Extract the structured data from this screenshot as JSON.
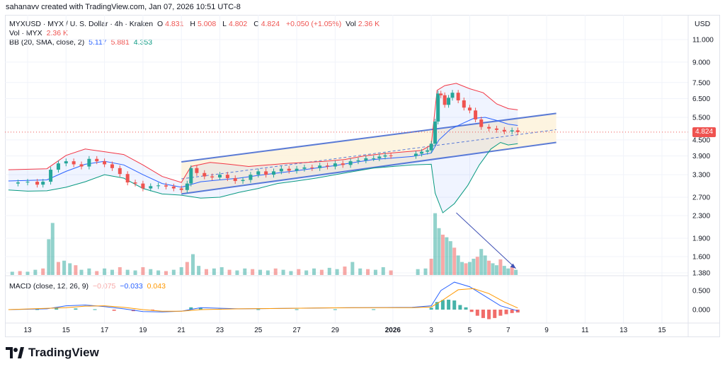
{
  "header": {
    "credit": "sahanavv created with TradingView.com, Jan 07, 2026 10:51 UTC-8"
  },
  "legend": {
    "symbol": "MYXUSD · MYX / U. S. Dollar · 4h · Kraken",
    "open_label": "O",
    "open": "4.831",
    "high_label": "H",
    "high": "5.008",
    "low_label": "L",
    "low": "4.802",
    "close_label": "C",
    "close": "4.824",
    "change": "+0.050 (+1.05%)",
    "vol_label": "Vol",
    "vol": "2.36 K",
    "vol_line_label": "Vol · MYX",
    "vol_line_value": "2.36 K",
    "bb_label": "BB (20, SMA, close, 2)",
    "bb_basis": "5.117",
    "bb_upper": "5.881",
    "bb_lower": "4.353",
    "macd_label": "MACD (close, 12, 26, 9)",
    "macd_hist": "−0.075",
    "macd_line": "−0.033",
    "macd_signal": "0.043"
  },
  "price_axis": {
    "currency": "USD",
    "last_price": "4.824"
  },
  "brand": {
    "name": "TradingView"
  },
  "colors": {
    "up": "#26a69a",
    "down": "#ef5350",
    "bb_basis": "#2962ff",
    "bb_upper": "#f23645",
    "bb_lower": "#089981",
    "channel": "#5b7bd5",
    "channel_fill": "#fdf3dd",
    "macd": "#2962ff",
    "signal": "#ff9800"
  },
  "chart_data": {
    "type": "candlestick",
    "scale": "log",
    "x_ticks": [
      "13",
      "15",
      "17",
      "19",
      "21",
      "23",
      "25",
      "27",
      "29",
      "2026",
      "3",
      "5",
      "7",
      "9",
      "11",
      "13",
      "15"
    ],
    "price_ticks": [
      11.0,
      9.0,
      7.5,
      6.5,
      5.5,
      4.5,
      3.9,
      3.3,
      2.7,
      2.3,
      1.9,
      1.6,
      1.38
    ],
    "price_tick_labels": [
      "11.000",
      "9.000",
      "7.500",
      "6.500",
      "5.500",
      "4.500",
      "3.900",
      "3.300",
      "2.700",
      "2.300",
      "1.900",
      "1.600",
      "1.380"
    ],
    "macd_ticks": [
      0.5,
      0.0
    ],
    "macd_tick_labels": [
      "0.500",
      "0.000"
    ],
    "close_path": [
      [
        12.0,
        3.05
      ],
      [
        12.5,
        3.08
      ],
      [
        13.0,
        3.1
      ],
      [
        13.5,
        3.02
      ],
      [
        13.8,
        3.1
      ],
      [
        14.2,
        3.45
      ],
      [
        14.6,
        3.65
      ],
      [
        15.0,
        3.72
      ],
      [
        15.4,
        3.62
      ],
      [
        15.8,
        3.55
      ],
      [
        16.2,
        3.8
      ],
      [
        16.6,
        3.72
      ],
      [
        17.0,
        3.62
      ],
      [
        17.4,
        3.5
      ],
      [
        17.8,
        3.32
      ],
      [
        18.2,
        3.08
      ],
      [
        18.6,
        3.05
      ],
      [
        19.0,
        2.92
      ],
      [
        19.4,
        2.98
      ],
      [
        19.8,
        3.0
      ],
      [
        20.2,
        2.97
      ],
      [
        20.6,
        2.92
      ],
      [
        21.0,
        2.88
      ],
      [
        21.3,
        3.05
      ],
      [
        21.5,
        3.5
      ],
      [
        21.8,
        3.35
      ],
      [
        22.2,
        3.25
      ],
      [
        22.6,
        3.22
      ],
      [
        23.0,
        3.3
      ],
      [
        23.4,
        3.2
      ],
      [
        23.8,
        3.12
      ],
      [
        24.2,
        3.15
      ],
      [
        24.6,
        3.3
      ],
      [
        25.0,
        3.4
      ],
      [
        25.4,
        3.3
      ],
      [
        25.8,
        3.4
      ],
      [
        26.2,
        3.48
      ],
      [
        26.6,
        3.42
      ],
      [
        27.0,
        3.48
      ],
      [
        27.4,
        3.52
      ],
      [
        27.8,
        3.5
      ],
      [
        28.2,
        3.58
      ],
      [
        28.6,
        3.55
      ],
      [
        29.0,
        3.65
      ],
      [
        29.4,
        3.6
      ],
      [
        29.8,
        3.72
      ],
      [
        30.2,
        3.75
      ],
      [
        30.6,
        3.82
      ],
      [
        31.0,
        3.82
      ],
      [
        31.3,
        3.88
      ],
      [
        31.6,
        3.92
      ],
      [
        31.9,
        3.9
      ],
      [
        32.2,
        3.98
      ],
      [
        32.5,
        4.05
      ],
      [
        32.8,
        4.1
      ],
      [
        33.0,
        4.35
      ],
      [
        33.2,
        5.3
      ],
      [
        33.35,
        6.8
      ],
      [
        33.5,
        6.7
      ],
      [
        33.7,
        6.15
      ],
      [
        33.9,
        6.55
      ],
      [
        34.1,
        6.85
      ],
      [
        34.4,
        6.4
      ],
      [
        34.7,
        6.0
      ],
      [
        35.0,
        5.85
      ],
      [
        35.3,
        5.4
      ],
      [
        35.6,
        5.05
      ],
      [
        36.0,
        4.98
      ],
      [
        36.4,
        4.92
      ],
      [
        36.8,
        4.85
      ],
      [
        37.2,
        4.9
      ],
      [
        37.5,
        4.824
      ]
    ],
    "bollinger": {
      "upper": [
        [
          12.0,
          3.45
        ],
        [
          14.0,
          3.48
        ],
        [
          15.0,
          3.92
        ],
        [
          16.0,
          4.15
        ],
        [
          17.0,
          4.05
        ],
        [
          18.0,
          3.95
        ],
        [
          19.0,
          3.6
        ],
        [
          20.0,
          3.25
        ],
        [
          21.0,
          3.08
        ],
        [
          21.5,
          3.55
        ],
        [
          22.5,
          3.68
        ],
        [
          23.5,
          3.62
        ],
        [
          24.5,
          3.55
        ],
        [
          25.5,
          3.6
        ],
        [
          26.5,
          3.65
        ],
        [
          27.5,
          3.68
        ],
        [
          28.5,
          3.72
        ],
        [
          29.5,
          3.78
        ],
        [
          30.5,
          3.9
        ],
        [
          31.5,
          3.98
        ],
        [
          32.5,
          4.1
        ],
        [
          33.0,
          4.3
        ],
        [
          33.3,
          7.0
        ],
        [
          33.7,
          7.3
        ],
        [
          34.3,
          7.45
        ],
        [
          35.0,
          7.1
        ],
        [
          35.7,
          6.85
        ],
        [
          36.4,
          6.2
        ],
        [
          37.0,
          5.95
        ],
        [
          37.5,
          5.881
        ]
      ],
      "basis": [
        [
          12.0,
          3.12
        ],
        [
          14.0,
          3.15
        ],
        [
          15.0,
          3.4
        ],
        [
          16.0,
          3.62
        ],
        [
          17.0,
          3.72
        ],
        [
          18.0,
          3.6
        ],
        [
          19.0,
          3.3
        ],
        [
          20.0,
          3.05
        ],
        [
          21.0,
          2.95
        ],
        [
          22.0,
          3.1
        ],
        [
          23.0,
          3.15
        ],
        [
          24.0,
          3.2
        ],
        [
          25.0,
          3.28
        ],
        [
          26.0,
          3.35
        ],
        [
          27.0,
          3.42
        ],
        [
          28.0,
          3.5
        ],
        [
          29.0,
          3.58
        ],
        [
          30.0,
          3.68
        ],
        [
          31.0,
          3.78
        ],
        [
          32.0,
          3.88
        ],
        [
          33.0,
          4.0
        ],
        [
          33.4,
          4.5
        ],
        [
          34.0,
          4.95
        ],
        [
          34.6,
          5.2
        ],
        [
          35.2,
          5.45
        ],
        [
          35.8,
          5.5
        ],
        [
          36.4,
          5.35
        ],
        [
          37.0,
          5.18
        ],
        [
          37.5,
          5.117
        ]
      ],
      "lower": [
        [
          12.0,
          2.88
        ],
        [
          13.0,
          2.85
        ],
        [
          14.0,
          2.86
        ],
        [
          15.0,
          2.95
        ],
        [
          16.0,
          3.1
        ],
        [
          17.0,
          3.3
        ],
        [
          18.0,
          3.2
        ],
        [
          19.0,
          2.92
        ],
        [
          20.0,
          2.78
        ],
        [
          21.0,
          2.75
        ],
        [
          22.0,
          2.68
        ],
        [
          23.0,
          2.7
        ],
        [
          24.0,
          2.82
        ],
        [
          25.0,
          2.92
        ],
        [
          26.0,
          3.05
        ],
        [
          27.0,
          3.12
        ],
        [
          28.0,
          3.2
        ],
        [
          29.0,
          3.3
        ],
        [
          30.0,
          3.4
        ],
        [
          31.0,
          3.5
        ],
        [
          32.0,
          3.6
        ],
        [
          33.0,
          3.62
        ],
        [
          33.2,
          2.8
        ],
        [
          33.6,
          2.35
        ],
        [
          34.2,
          2.55
        ],
        [
          34.9,
          3.0
        ],
        [
          35.5,
          3.6
        ],
        [
          36.1,
          4.15
        ],
        [
          36.6,
          4.4
        ],
        [
          37.0,
          4.3
        ],
        [
          37.5,
          4.353
        ]
      ]
    },
    "channel": {
      "upper_line": [
        [
          21.0,
          3.7
        ],
        [
          39.5,
          5.7
        ]
      ],
      "middle_dashed": [
        [
          21.0,
          3.18
        ],
        [
          39.5,
          4.93
        ]
      ],
      "lower_line": [
        [
          21.0,
          2.78
        ],
        [
          39.5,
          4.4
        ]
      ]
    },
    "volume_trend_arrow": [
      [
        34.3,
        1.0
      ],
      [
        37.4,
        0.1
      ]
    ],
    "volume_relative": [
      [
        12.2,
        0.05
      ],
      [
        12.6,
        0.06
      ],
      [
        13.0,
        0.05
      ],
      [
        13.4,
        0.08
      ],
      [
        13.8,
        0.1
      ],
      [
        14.1,
        0.55
      ],
      [
        14.3,
        0.8
      ],
      [
        14.6,
        0.2
      ],
      [
        14.9,
        0.22
      ],
      [
        15.2,
        0.18
      ],
      [
        15.5,
        0.15
      ],
      [
        15.8,
        0.08
      ],
      [
        16.2,
        0.1
      ],
      [
        16.6,
        0.06
      ],
      [
        17.0,
        0.1
      ],
      [
        17.4,
        0.08
      ],
      [
        17.8,
        0.12
      ],
      [
        18.2,
        0.08
      ],
      [
        18.6,
        0.07
      ],
      [
        19.0,
        0.12
      ],
      [
        19.4,
        0.09
      ],
      [
        19.8,
        0.07
      ],
      [
        20.2,
        0.06
      ],
      [
        20.6,
        0.08
      ],
      [
        21.0,
        0.12
      ],
      [
        21.3,
        0.2
      ],
      [
        21.6,
        0.32
      ],
      [
        21.9,
        0.14
      ],
      [
        22.3,
        0.09
      ],
      [
        22.7,
        0.1
      ],
      [
        23.1,
        0.12
      ],
      [
        23.5,
        0.08
      ],
      [
        23.9,
        0.07
      ],
      [
        24.3,
        0.1
      ],
      [
        24.7,
        0.09
      ],
      [
        25.1,
        0.08
      ],
      [
        25.5,
        0.07
      ],
      [
        25.9,
        0.1
      ],
      [
        26.3,
        0.08
      ],
      [
        26.7,
        0.06
      ],
      [
        27.1,
        0.09
      ],
      [
        27.5,
        0.07
      ],
      [
        27.9,
        0.1
      ],
      [
        28.3,
        0.08
      ],
      [
        28.7,
        0.11
      ],
      [
        29.1,
        0.09
      ],
      [
        29.5,
        0.13
      ],
      [
        29.9,
        0.2
      ],
      [
        30.3,
        0.1
      ],
      [
        30.7,
        0.09
      ],
      [
        31.1,
        0.08
      ],
      [
        31.5,
        0.12
      ],
      [
        31.9,
        0.07
      ],
      [
        32.3,
        0.09
      ],
      [
        32.7,
        0.1
      ],
      [
        33.0,
        0.25
      ],
      [
        33.2,
        0.95
      ],
      [
        33.4,
        0.72
      ],
      [
        33.6,
        0.62
      ],
      [
        33.8,
        0.58
      ],
      [
        34.0,
        0.52
      ],
      [
        34.2,
        0.42
      ],
      [
        34.4,
        0.3
      ],
      [
        34.6,
        0.2
      ],
      [
        34.8,
        0.18
      ],
      [
        35.0,
        0.2
      ],
      [
        35.2,
        0.25
      ],
      [
        35.4,
        0.28
      ],
      [
        35.6,
        0.4
      ],
      [
        35.8,
        0.3
      ],
      [
        36.0,
        0.22
      ],
      [
        36.2,
        0.18
      ],
      [
        36.4,
        0.15
      ],
      [
        36.6,
        0.24
      ],
      [
        36.8,
        0.14
      ],
      [
        37.0,
        0.1
      ],
      [
        37.2,
        0.12
      ],
      [
        37.4,
        0.08
      ]
    ],
    "macd": {
      "macd_line": [
        [
          12.0,
          0.0
        ],
        [
          14.0,
          0.02
        ],
        [
          15.0,
          0.1
        ],
        [
          16.0,
          0.12
        ],
        [
          17.0,
          0.08
        ],
        [
          18.0,
          0.02
        ],
        [
          19.0,
          -0.05
        ],
        [
          20.0,
          -0.06
        ],
        [
          21.0,
          -0.04
        ],
        [
          22.0,
          0.05
        ],
        [
          24.0,
          0.02
        ],
        [
          26.0,
          0.03
        ],
        [
          28.0,
          0.04
        ],
        [
          30.0,
          0.05
        ],
        [
          32.0,
          0.06
        ],
        [
          33.0,
          0.1
        ],
        [
          33.5,
          0.5
        ],
        [
          34.2,
          0.72
        ],
        [
          35.0,
          0.6
        ],
        [
          35.8,
          0.35
        ],
        [
          36.6,
          0.1
        ],
        [
          37.5,
          -0.033
        ]
      ],
      "signal_line": [
        [
          12.0,
          0.0
        ],
        [
          15.0,
          0.05
        ],
        [
          16.0,
          0.09
        ],
        [
          17.0,
          0.1
        ],
        [
          18.0,
          0.06
        ],
        [
          19.0,
          0.0
        ],
        [
          20.0,
          -0.04
        ],
        [
          21.0,
          -0.04
        ],
        [
          22.0,
          0.0
        ],
        [
          24.0,
          0.02
        ],
        [
          26.0,
          0.03
        ],
        [
          28.0,
          0.04
        ],
        [
          30.0,
          0.05
        ],
        [
          32.0,
          0.05
        ],
        [
          33.0,
          0.07
        ],
        [
          33.6,
          0.25
        ],
        [
          34.4,
          0.52
        ],
        [
          35.2,
          0.55
        ],
        [
          36.0,
          0.42
        ],
        [
          36.8,
          0.2
        ],
        [
          37.5,
          0.043
        ]
      ],
      "histogram_relative": [
        [
          13.5,
          0.01
        ],
        [
          14.5,
          0.04
        ],
        [
          15.5,
          0.03
        ],
        [
          16.5,
          0.01
        ],
        [
          17.5,
          -0.03
        ],
        [
          18.5,
          -0.04
        ],
        [
          19.5,
          -0.02
        ],
        [
          21.5,
          0.06
        ],
        [
          22.0,
          0.05
        ],
        [
          23.0,
          0.02
        ],
        [
          25.0,
          0.01
        ],
        [
          27.0,
          0.01
        ],
        [
          29.0,
          0.01
        ],
        [
          31.0,
          0.01
        ],
        [
          33.0,
          0.05
        ],
        [
          33.3,
          0.2
        ],
        [
          33.6,
          0.25
        ],
        [
          33.9,
          0.26
        ],
        [
          34.2,
          0.24
        ],
        [
          34.5,
          0.12
        ],
        [
          34.8,
          0.06
        ],
        [
          35.1,
          -0.06
        ],
        [
          35.4,
          -0.16
        ],
        [
          35.7,
          -0.22
        ],
        [
          36.0,
          -0.25
        ],
        [
          36.3,
          -0.22
        ],
        [
          36.6,
          -0.16
        ],
        [
          36.9,
          -0.12
        ],
        [
          37.2,
          -0.09
        ],
        [
          37.5,
          -0.075
        ]
      ]
    }
  }
}
